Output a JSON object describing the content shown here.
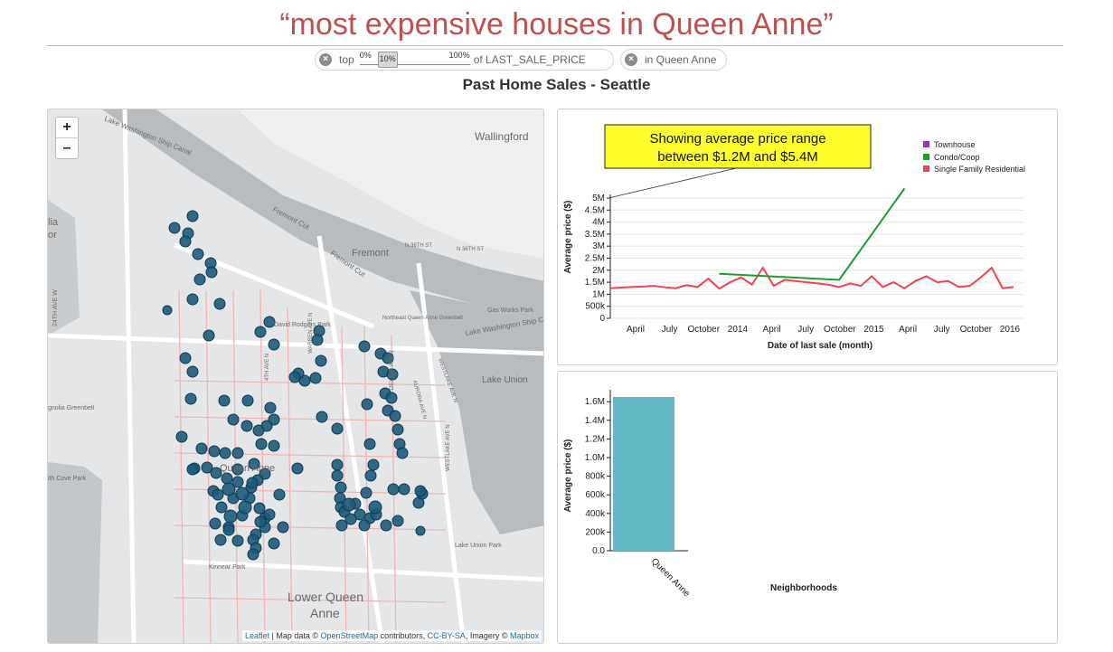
{
  "query_title": "“most expensive houses in Queen Anne”",
  "filters": {
    "chip1": {
      "prefix": "top",
      "min_label": "0%",
      "handle_label": "10%",
      "max_label": "100%",
      "suffix": "of LAST_SALE_PRICE",
      "value_fraction": 0.1
    },
    "chip2": {
      "label": "in Queen Anne"
    }
  },
  "dashboard_title": "Past Home Sales - Seattle",
  "map": {
    "zoom_in": "+",
    "zoom_out": "–",
    "labels": {
      "canal": "Lake Washington Ship Canal",
      "wallingford": "Wallingford",
      "fremont_cut1": "Fremont Cut",
      "fremont": "Fremont",
      "n36a": "N 36TH ST",
      "n36b": "N 36TH ST",
      "fremont_cut2": "Fremont Cut",
      "gasworks": "Gas Works Park",
      "ave24": "24TH AVE W",
      "david_rodgers": "David Rodgers Park",
      "nqa_greenbelt": "Northeast Queen Anne Greenbelt",
      "lake_wash_ship": "Lake Washington Ship Canal",
      "lake_union": "Lake Union",
      "westlake1": "WESTLAKE AVE N",
      "westlake2": "WESTLAKE AVE N",
      "aurora": "AURORA AVE N",
      "dexter": "DEXTER AVE N",
      "warren": "WARREN AVE N",
      "fourth": "4TH AVE N",
      "magnolia": "gnolia Greenbelt",
      "smith_cove": "ith Cove Park",
      "queen_anne": "Queen Anne",
      "kinnear": "Kinnear Park",
      "lake_union_park": "Lake Union Park",
      "lower_qa1": "Lower Queen",
      "lower_qa2": "Anne",
      "left_lia": "lia",
      "left_or": "or"
    },
    "attribution": {
      "leaflet": "Leaflet",
      "sep": " | Map data © ",
      "osm": "OpenStreetMap",
      "contrib": " contributors, ",
      "ccbysa": "CC-BY-SA",
      "imagery": ", Imagery © ",
      "mapbox": "Mapbox"
    }
  },
  "annotation": {
    "line1": "Showing average price range",
    "line2": "between $1.2M and $5.4M"
  },
  "legend": [
    {
      "label": "Townhouse",
      "color": "#9b30c7"
    },
    {
      "label": "Condo/Coop",
      "color": "#17a02a"
    },
    {
      "label": "Single Family Residential",
      "color": "#f0424f"
    }
  ],
  "chart_data": [
    {
      "type": "line",
      "xlabel": "Date of last sale (month)",
      "ylabel": "Average price ($)",
      "x_ticks": [
        "April",
        "July",
        "October",
        "2014",
        "April",
        "July",
        "October",
        "2015",
        "April",
        "July",
        "October",
        "2016"
      ],
      "y_ticks": [
        "0",
        "500k",
        "1M",
        "1.5M",
        "2M",
        "2.5M",
        "3M",
        "3.5M",
        "4M",
        "4.5M",
        "5M"
      ],
      "ylim": [
        0,
        5000000
      ],
      "x_range": [
        "2013-01",
        "2016-03"
      ],
      "series": [
        {
          "name": "Single Family Residential",
          "color": "#f0424f",
          "points": [
            [
              "2013-01",
              1250000
            ],
            [
              "2013-02",
              1280000
            ],
            [
              "2013-03",
              1300000
            ],
            [
              "2013-04",
              1320000
            ],
            [
              "2013-05",
              1350000
            ],
            [
              "2013-06",
              1290000
            ],
            [
              "2013-07",
              1250000
            ],
            [
              "2013-08",
              1380000
            ],
            [
              "2013-09",
              1300000
            ],
            [
              "2013-10",
              1650000
            ],
            [
              "2013-11",
              1230000
            ],
            [
              "2013-12",
              1500000
            ],
            [
              "2014-01",
              1700000
            ],
            [
              "2014-02",
              1400000
            ],
            [
              "2014-03",
              2100000
            ],
            [
              "2014-04",
              1350000
            ],
            [
              "2014-05",
              1600000
            ],
            [
              "2014-06",
              1550000
            ],
            [
              "2014-07",
              1500000
            ],
            [
              "2014-08",
              1450000
            ],
            [
              "2014-09",
              1400000
            ],
            [
              "2014-10",
              1300000
            ],
            [
              "2014-11",
              1450000
            ],
            [
              "2014-12",
              1350000
            ],
            [
              "2015-01",
              1750000
            ],
            [
              "2015-02",
              1300000
            ],
            [
              "2015-03",
              1500000
            ],
            [
              "2015-04",
              1250000
            ],
            [
              "2015-05",
              1550000
            ],
            [
              "2015-06",
              1750000
            ],
            [
              "2015-07",
              1500000
            ],
            [
              "2015-08",
              1550000
            ],
            [
              "2015-09",
              1300000
            ],
            [
              "2015-10",
              1350000
            ],
            [
              "2015-11",
              1700000
            ],
            [
              "2015-12",
              2100000
            ],
            [
              "2016-01",
              1250000
            ],
            [
              "2016-02",
              1300000
            ]
          ]
        },
        {
          "name": "Condo/Coop",
          "color": "#17a02a",
          "points": [
            [
              "2013-11",
              1850000
            ],
            [
              "2014-10",
              1600000
            ],
            [
              "2015-04",
              5400000
            ]
          ]
        },
        {
          "name": "Townhouse",
          "color": "#9b30c7",
          "points": []
        }
      ]
    },
    {
      "type": "bar",
      "xlabel": "Neighborhoods",
      "ylabel": "Average price ($)",
      "categories": [
        "Queen Anne"
      ],
      "values": [
        1780000
      ],
      "y_ticks": [
        "0.0",
        "200k",
        "400k",
        "600k",
        "800k",
        "1.0M",
        "1.2M",
        "1.4M",
        "1.6M"
      ],
      "ylim": [
        0,
        1780000
      ],
      "color": "#62b8c4"
    }
  ]
}
